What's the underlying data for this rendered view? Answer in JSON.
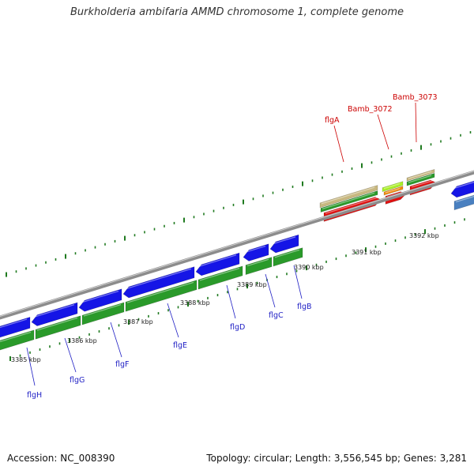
{
  "title": "Burkholderia ambifaria AMMD chromosome 1, complete genome",
  "footer": {
    "accession": "Accession: NC_008390",
    "stats": "Topology: circular; Length: 3,556,545 bp; Genes: 3,281"
  },
  "colors": {
    "backbone": "#8c8c8c",
    "cds": "#1515e6",
    "gene": "#2a9a2a",
    "tick": "#1f7a1f",
    "label_blue": "#1f1fc4",
    "label_red": "#cc0000",
    "rrna_red": "#e01010",
    "tan": "#c8b880",
    "lime": "#aaf028",
    "orange": "#f08c10",
    "steel": "#4a80c0"
  },
  "scale_labels": [
    "3385 kbp",
    "3386 kbp",
    "3387 kbp",
    "3388 kbp",
    "3389 kbp",
    "3390 kbp",
    "3391 kbp",
    "3392 kbp"
  ],
  "gene_labels": [
    {
      "name": "flgH",
      "color": "blue"
    },
    {
      "name": "flgG",
      "color": "blue"
    },
    {
      "name": "flgF",
      "color": "blue"
    },
    {
      "name": "flgE",
      "color": "blue"
    },
    {
      "name": "flgD",
      "color": "blue"
    },
    {
      "name": "flgC",
      "color": "blue"
    },
    {
      "name": "flgB",
      "color": "blue"
    },
    {
      "name": "flgA",
      "color": "red"
    },
    {
      "name": "Bamb_3072",
      "color": "red"
    },
    {
      "name": "Bamb_3073",
      "color": "red"
    }
  ]
}
